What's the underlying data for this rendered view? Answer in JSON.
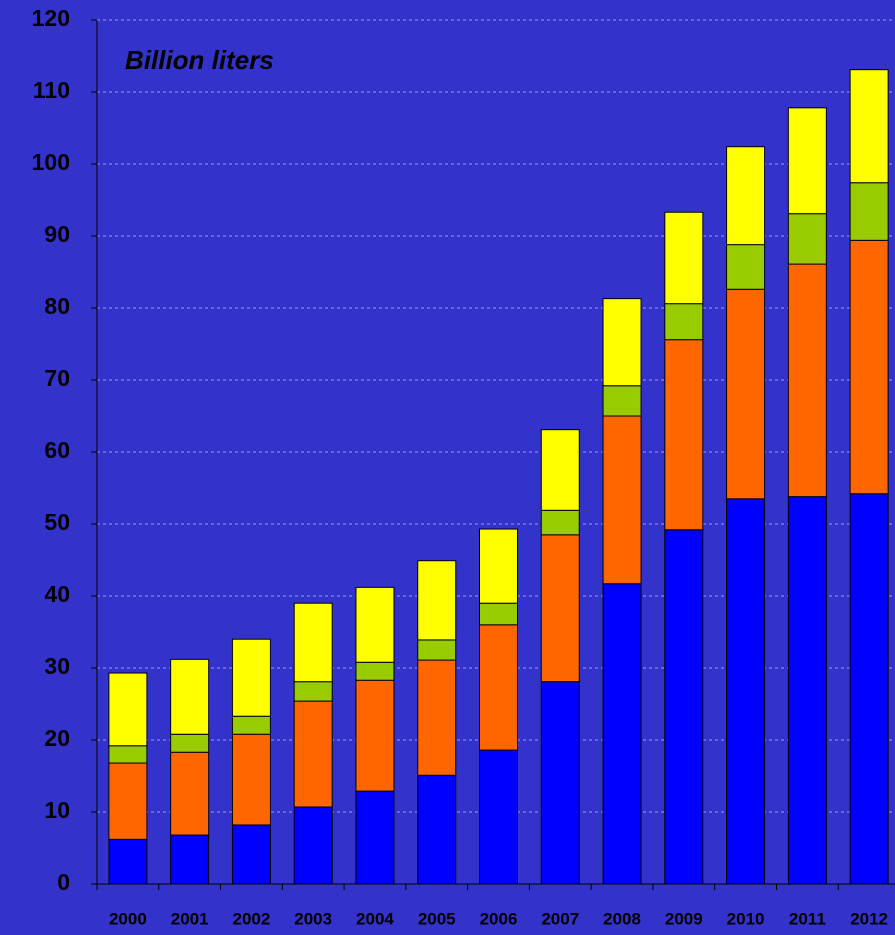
{
  "chart_data": {
    "type": "stacked_bar",
    "annotation": "Billion liters",
    "categories": [
      "2000",
      "2001",
      "2002",
      "2003",
      "2004",
      "2005",
      "2006",
      "2007",
      "2008",
      "2009",
      "2010",
      "2011",
      "2012"
    ],
    "series": [
      {
        "color": "#0000ff",
        "values": [
          6.2,
          6.8,
          8.2,
          10.7,
          12.9,
          15.1,
          18.6,
          28.1,
          41.7,
          49.2,
          53.5,
          53.8,
          54.2
        ]
      },
      {
        "color": "#ff6600",
        "values": [
          10.6,
          11.5,
          12.6,
          14.7,
          15.4,
          16.0,
          17.4,
          20.4,
          23.3,
          26.4,
          29.1,
          32.3,
          35.2
        ]
      },
      {
        "color": "#99cc00",
        "values": [
          2.4,
          2.5,
          2.5,
          2.7,
          2.5,
          2.8,
          3.0,
          3.4,
          4.2,
          5.0,
          6.2,
          7.0,
          8.0
        ]
      },
      {
        "color": "#ffff00",
        "values": [
          10.1,
          10.4,
          10.7,
          10.9,
          10.4,
          11.0,
          10.3,
          11.2,
          12.1,
          12.7,
          13.6,
          14.7,
          15.7
        ]
      }
    ],
    "ylim": [
      0,
      120
    ],
    "yticks": [
      0,
      10,
      20,
      30,
      40,
      50,
      60,
      70,
      80,
      90,
      100,
      110,
      120
    ],
    "grid": true
  }
}
